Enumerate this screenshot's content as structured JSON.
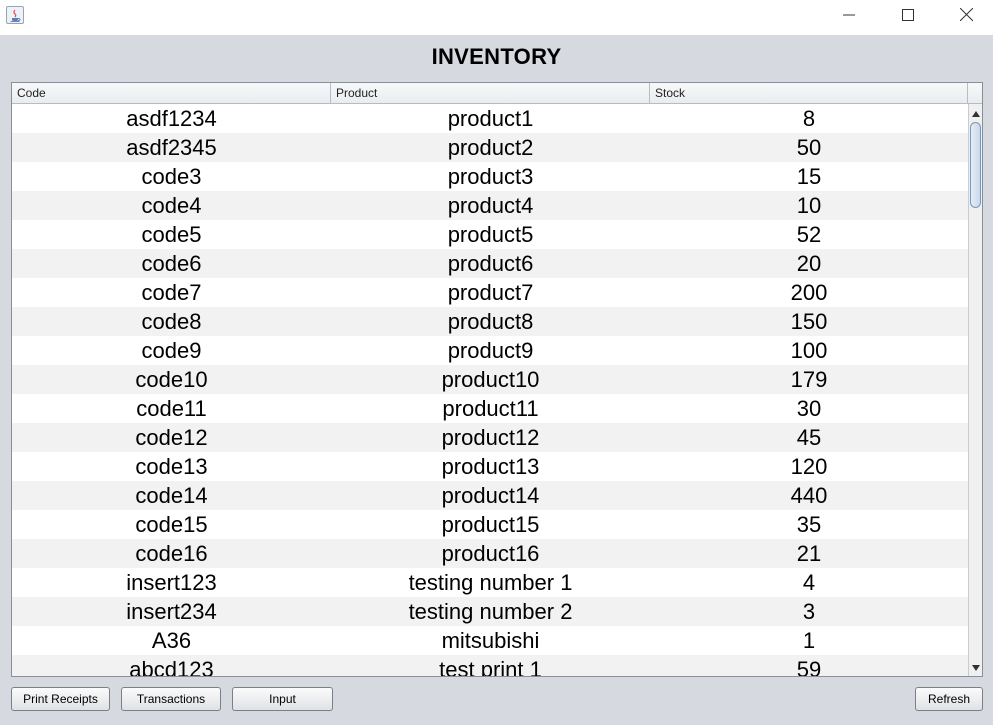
{
  "window": {
    "icon": "java-icon",
    "controls": [
      "minimize-icon",
      "maximize-icon",
      "close-icon"
    ]
  },
  "heading": "INVENTORY",
  "table": {
    "columns": [
      "Code",
      "Product",
      "Stock"
    ],
    "rows": [
      {
        "code": "asdf1234",
        "product": "product1",
        "stock": "8"
      },
      {
        "code": "asdf2345",
        "product": "product2",
        "stock": "50"
      },
      {
        "code": "code3",
        "product": "product3",
        "stock": "15"
      },
      {
        "code": "code4",
        "product": "product4",
        "stock": "10"
      },
      {
        "code": "code5",
        "product": "product5",
        "stock": "52"
      },
      {
        "code": "code6",
        "product": "product6",
        "stock": "20"
      },
      {
        "code": "code7",
        "product": "product7",
        "stock": "200"
      },
      {
        "code": "code8",
        "product": "product8",
        "stock": "150"
      },
      {
        "code": "code9",
        "product": "product9",
        "stock": "100"
      },
      {
        "code": "code10",
        "product": "product10",
        "stock": "179"
      },
      {
        "code": "code11",
        "product": "product11",
        "stock": "30"
      },
      {
        "code": "code12",
        "product": "product12",
        "stock": "45"
      },
      {
        "code": "code13",
        "product": "product13",
        "stock": "120"
      },
      {
        "code": "code14",
        "product": "product14",
        "stock": "440"
      },
      {
        "code": "code15",
        "product": "product15",
        "stock": "35"
      },
      {
        "code": "code16",
        "product": "product16",
        "stock": "21"
      },
      {
        "code": "insert123",
        "product": "testing number 1",
        "stock": "4"
      },
      {
        "code": "insert234",
        "product": "testing number 2",
        "stock": "3"
      },
      {
        "code": "A36",
        "product": "mitsubishi",
        "stock": "1"
      },
      {
        "code": "abcd123",
        "product": "test print 1",
        "stock": "59"
      }
    ]
  },
  "buttons": {
    "print_receipts": "Print Receipts",
    "transactions": "Transactions",
    "input": "Input",
    "refresh": "Refresh"
  }
}
